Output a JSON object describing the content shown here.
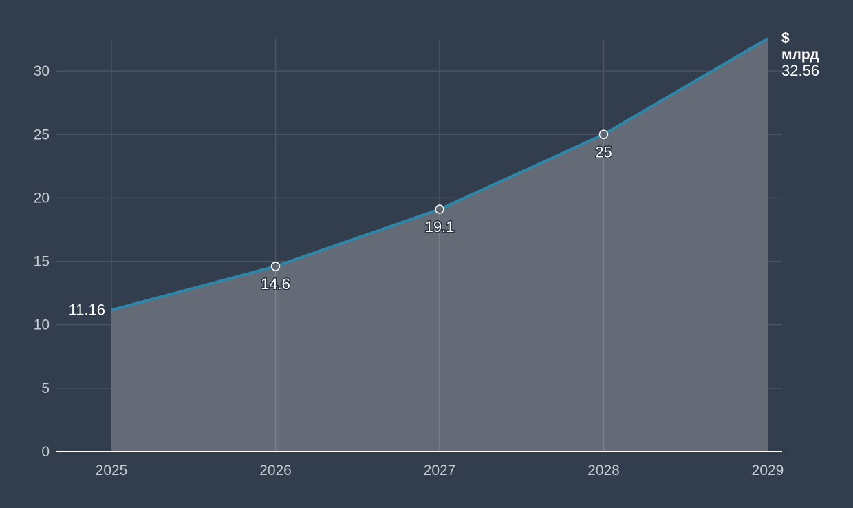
{
  "chart_data": {
    "type": "area",
    "x": [
      "2025",
      "2026",
      "2027",
      "2028",
      "2029"
    ],
    "series": [
      {
        "values": [
          11.16,
          14.6,
          19.1,
          25,
          32.56
        ]
      }
    ],
    "data_labels": [
      "11.16",
      "14.6",
      "19.1",
      "25",
      "32.56"
    ],
    "ylim": [
      0,
      32.56
    ],
    "yticks": [
      "0",
      "5",
      "10",
      "15",
      "20",
      "25",
      "30"
    ],
    "unit_label_line1": "$",
    "unit_label_line2": "млрд",
    "grid": true,
    "colors": {
      "background": "#323d4d",
      "line": "#2e86a8",
      "area": "#646b76",
      "grid": "#4a5464"
    }
  }
}
